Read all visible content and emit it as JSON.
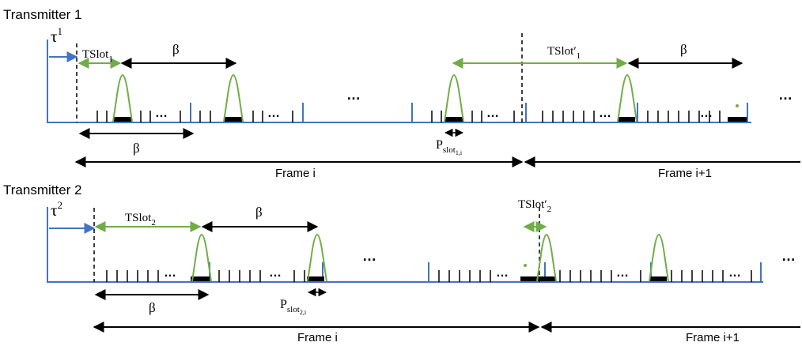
{
  "colors": {
    "axis": "#4472c4",
    "pulse": "#70ad47",
    "slot": "#000000",
    "marker": "#000000"
  },
  "transmitter1": {
    "title": "Transmitter 1",
    "tau": "τ",
    "tau_sup": "1",
    "tslot_base": "TSlot",
    "tslot_sub": "1",
    "tslot_prime_base": "TSlot′",
    "tslot_prime_sub": "1",
    "beta": "β",
    "ellipsis": "…",
    "p_slot_base": "P",
    "p_slot_sub": "slot",
    "p_slot_subsub": "1,i",
    "frame_i": "Frame i",
    "frame_next": "Frame i+1"
  },
  "transmitter2": {
    "title": "Transmitter 2",
    "tau": "τ",
    "tau_sup": "2",
    "tslot_base": "TSlot",
    "tslot_sub": "2",
    "tslot_prime_base": "TSlot′",
    "tslot_prime_sub": "2",
    "beta": "β",
    "ellipsis": "…",
    "p_slot_base": "P",
    "p_slot_sub": "slot",
    "p_slot_subsub": "2,i",
    "frame_i": "Frame i",
    "frame_next": "Frame i+1"
  }
}
